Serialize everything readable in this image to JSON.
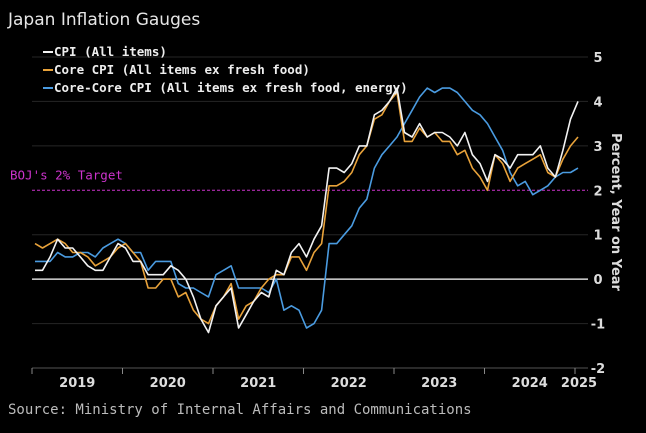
{
  "chart_data": {
    "type": "line",
    "title": "Japan Inflation Gauges",
    "source": "Source: Ministry of Internal Affairs and Communications",
    "ylabel": "Percent, Year on Year",
    "ylim": [
      -2,
      5
    ],
    "yticks": [
      "5",
      "4",
      "3",
      "2",
      "1",
      "0",
      "-1",
      "-2"
    ],
    "xticks": [
      "2019",
      "2020",
      "2021",
      "2022",
      "2023",
      "2024",
      "2025"
    ],
    "x_start": "2019-01",
    "x_end": "2025-01",
    "annotation": {
      "label": "BOJ's 2% Target",
      "value": 2,
      "color": "#cc33cc"
    },
    "series": [
      {
        "name": "CPI (All items)",
        "color": "#f2f2f2",
        "values": [
          0.2,
          0.2,
          0.5,
          0.9,
          0.7,
          0.7,
          0.5,
          0.3,
          0.2,
          0.2,
          0.5,
          0.8,
          0.7,
          0.4,
          0.4,
          0.1,
          0.1,
          0.1,
          0.3,
          0.2,
          0.0,
          -0.4,
          -0.9,
          -1.2,
          -0.6,
          -0.4,
          -0.2,
          -1.1,
          -0.8,
          -0.5,
          -0.3,
          -0.4,
          0.2,
          0.1,
          0.6,
          0.8,
          0.5,
          0.9,
          1.2,
          2.5,
          2.5,
          2.4,
          2.6,
          3.0,
          3.0,
          3.7,
          3.8,
          4.0,
          4.3,
          3.3,
          3.2,
          3.5,
          3.2,
          3.3,
          3.3,
          3.2,
          3.0,
          3.3,
          2.8,
          2.6,
          2.2,
          2.8,
          2.7,
          2.5,
          2.8,
          2.8,
          2.8,
          3.0,
          2.5,
          2.3,
          2.9,
          3.6,
          4.0
        ]
      },
      {
        "name": "Core CPI (All items ex fresh food)",
        "color": "#e8a23a",
        "values": [
          0.8,
          0.7,
          0.8,
          0.9,
          0.8,
          0.6,
          0.6,
          0.5,
          0.3,
          0.4,
          0.5,
          0.7,
          0.8,
          0.6,
          0.4,
          -0.2,
          -0.2,
          0.0,
          0.0,
          -0.4,
          -0.3,
          -0.7,
          -0.9,
          -1.0,
          -0.6,
          -0.4,
          -0.1,
          -0.9,
          -0.6,
          -0.5,
          -0.2,
          0.0,
          0.1,
          0.1,
          0.5,
          0.5,
          0.2,
          0.6,
          0.8,
          2.1,
          2.1,
          2.2,
          2.4,
          2.8,
          3.0,
          3.6,
          3.7,
          4.0,
          4.2,
          3.1,
          3.1,
          3.4,
          3.2,
          3.3,
          3.1,
          3.1,
          2.8,
          2.9,
          2.5,
          2.3,
          2.0,
          2.8,
          2.6,
          2.2,
          2.5,
          2.6,
          2.7,
          2.8,
          2.4,
          2.3,
          2.7,
          3.0,
          3.2
        ]
      },
      {
        "name": "Core-Core CPI (All items ex fresh food, energy)",
        "color": "#4a9be0",
        "values": [
          0.4,
          0.4,
          0.4,
          0.6,
          0.5,
          0.5,
          0.6,
          0.6,
          0.5,
          0.7,
          0.8,
          0.9,
          0.8,
          0.6,
          0.6,
          0.2,
          0.4,
          0.4,
          0.4,
          -0.1,
          -0.2,
          -0.2,
          -0.3,
          -0.4,
          0.1,
          0.2,
          0.3,
          -0.2,
          -0.2,
          -0.2,
          -0.2,
          -0.3,
          0.0,
          -0.7,
          -0.6,
          -0.7,
          -1.1,
          -1.0,
          -0.7,
          0.8,
          0.8,
          1.0,
          1.2,
          1.6,
          1.8,
          2.5,
          2.8,
          3.0,
          3.2,
          3.5,
          3.8,
          4.1,
          4.3,
          4.2,
          4.3,
          4.3,
          4.2,
          4.0,
          3.8,
          3.7,
          3.5,
          3.2,
          2.9,
          2.4,
          2.1,
          2.2,
          1.9,
          2.0,
          2.1,
          2.3,
          2.4,
          2.4,
          2.5
        ]
      }
    ]
  }
}
